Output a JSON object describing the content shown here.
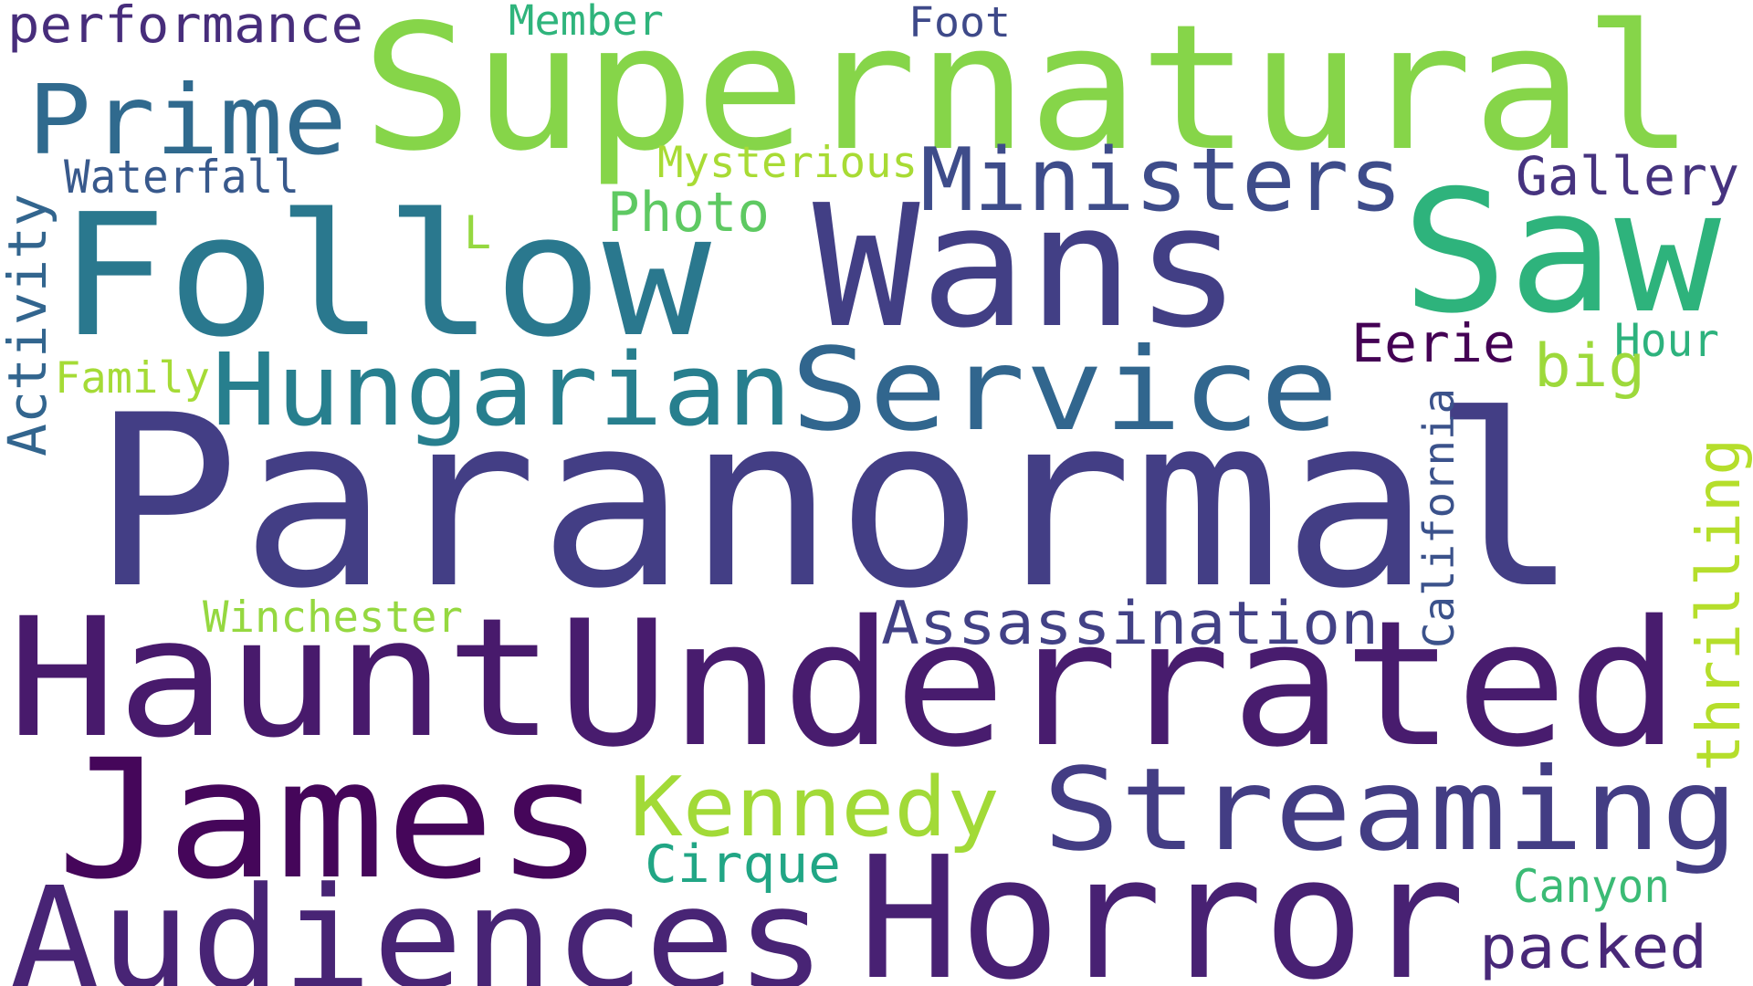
{
  "background": "#ffffff",
  "words": [
    {
      "text": "Paranormal",
      "color": "#433e85"
    },
    {
      "text": "Supernatural",
      "color": "#86d549"
    },
    {
      "text": "Follow",
      "color": "#2a788e"
    },
    {
      "text": "Wans",
      "color": "#423f85"
    },
    {
      "text": "Saw",
      "color": "#2eb37c"
    },
    {
      "text": "Underrated",
      "color": "#481c6e"
    },
    {
      "text": "Haunt",
      "color": "#481a6c"
    },
    {
      "text": "James",
      "color": "#45065a"
    },
    {
      "text": "Horror",
      "color": "#482173"
    },
    {
      "text": "Audiences",
      "color": "#482475"
    },
    {
      "text": "Streaming",
      "color": "#433d84"
    },
    {
      "text": "Hungarian",
      "color": "#277f8e"
    },
    {
      "text": "Service",
      "color": "#31668e"
    },
    {
      "text": "Prime",
      "color": "#306a8e"
    },
    {
      "text": "Ministers",
      "color": "#3e4c8a"
    },
    {
      "text": "Kennedy",
      "color": "#a2da37"
    },
    {
      "text": "Assassination",
      "color": "#424186"
    },
    {
      "text": "performance",
      "color": "#472d7b"
    },
    {
      "text": "Member",
      "color": "#2fb47c"
    },
    {
      "text": "Foot",
      "color": "#3e4989"
    },
    {
      "text": "Waterfall",
      "color": "#38598c"
    },
    {
      "text": "Mysterious",
      "color": "#a8db34"
    },
    {
      "text": "Gallery",
      "color": "#46337f"
    },
    {
      "text": "Photo",
      "color": "#5ec962"
    },
    {
      "text": "L",
      "color": "#95d840"
    },
    {
      "text": "Activity",
      "color": "#32658e"
    },
    {
      "text": "Eerie",
      "color": "#440154"
    },
    {
      "text": "Hour",
      "color": "#2db27d"
    },
    {
      "text": "big",
      "color": "#9dd93b"
    },
    {
      "text": "Family",
      "color": "#a5db36"
    },
    {
      "text": "California",
      "color": "#3b528b"
    },
    {
      "text": "thrilling",
      "color": "#b5de2b"
    },
    {
      "text": "Winchester",
      "color": "#95d840"
    },
    {
      "text": "Cirque",
      "color": "#21a685"
    },
    {
      "text": "Canyon",
      "color": "#3bbb75"
    },
    {
      "text": "packed",
      "color": "#482878"
    }
  ]
}
